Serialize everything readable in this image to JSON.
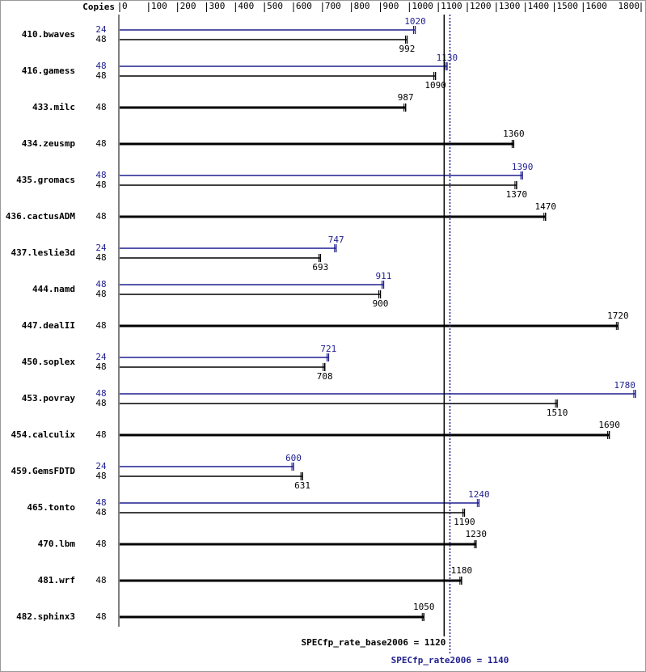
{
  "chart_data": {
    "type": "spec-bar",
    "copies_label": "Copies",
    "categories": [
      "410.bwaves",
      "416.gamess",
      "433.milc",
      "434.zeusmp",
      "435.gromacs",
      "436.cactusADM",
      "437.leslie3d",
      "444.namd",
      "447.dealII",
      "450.soplex",
      "453.povray",
      "454.calculix",
      "459.GemsFDTD",
      "465.tonto",
      "470.lbm",
      "481.wrf",
      "482.sphinx3"
    ],
    "series": [
      {
        "color": "#1f1f8f",
        "copies": [
          24,
          48,
          null,
          null,
          48,
          null,
          24,
          48,
          null,
          24,
          48,
          null,
          24,
          48,
          null,
          null,
          null
        ],
        "values": [
          1020,
          1130,
          null,
          null,
          1390,
          null,
          747,
          911,
          null,
          721,
          1780,
          null,
          600,
          1240,
          null,
          null,
          null
        ]
      },
      {
        "color": "#000000",
        "copies": [
          48,
          48,
          48,
          48,
          48,
          48,
          48,
          48,
          48,
          48,
          48,
          48,
          48,
          48,
          48,
          48,
          48
        ],
        "values": [
          992,
          1090,
          987,
          1360,
          1370,
          1470,
          693,
          900,
          1720,
          708,
          1510,
          1690,
          631,
          1190,
          1230,
          1180,
          1050
        ]
      }
    ],
    "xlim": [
      0,
      1800
    ],
    "xticks": [
      0,
      100,
      200,
      300,
      400,
      500,
      600,
      700,
      800,
      900,
      1000,
      1100,
      1200,
      1300,
      1400,
      1500,
      1600,
      1800
    ],
    "reference_lines": [
      {
        "label": "SPECfp_rate_base2006 = 1120",
        "value": 1120,
        "color": "#000000",
        "style": "solid"
      },
      {
        "label": "SPECfp_rate2006 = 1140",
        "value": 1140,
        "color": "#1f1f8f",
        "style": "dotted"
      }
    ]
  }
}
